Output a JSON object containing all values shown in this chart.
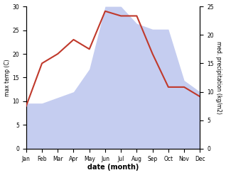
{
  "months": [
    "Jan",
    "Feb",
    "Mar",
    "Apr",
    "May",
    "Jun",
    "Jul",
    "Aug",
    "Sep",
    "Oct",
    "Nov",
    "Dec"
  ],
  "temperature": [
    9,
    18,
    20,
    23,
    21,
    29,
    28,
    28,
    20,
    13,
    13,
    11
  ],
  "precipitation": [
    8,
    8,
    9,
    10,
    14,
    25,
    25,
    22,
    21,
    21,
    12,
    10
  ],
  "temp_color": "#c0392b",
  "precip_fill_color": "#c5cdf0",
  "left_ylabel": "max temp (C)",
  "right_ylabel": "med. precipitation (kg/m2)",
  "xlabel": "date (month)",
  "left_ylim": [
    0,
    30
  ],
  "right_ylim": [
    0,
    25
  ],
  "left_yticks": [
    0,
    5,
    10,
    15,
    20,
    25,
    30
  ],
  "right_yticks": [
    0,
    5,
    10,
    15,
    20,
    25
  ],
  "background_color": "#ffffff"
}
